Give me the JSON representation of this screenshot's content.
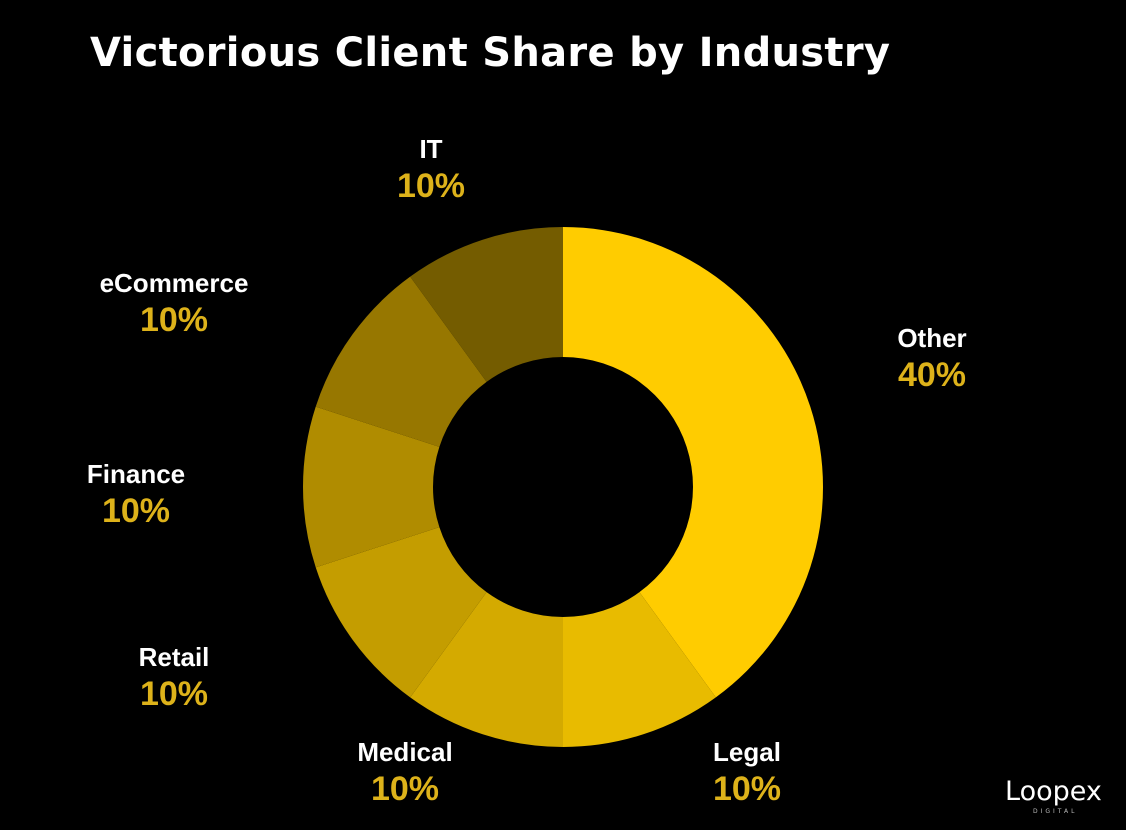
{
  "chart_data": {
    "type": "pie",
    "title": "Victorious Client Share by Industry",
    "slices": [
      {
        "label": "Other",
        "value": 40,
        "display": "40%",
        "color": "#FFCC00"
      },
      {
        "label": "Legal",
        "value": 10,
        "display": "10%",
        "color": "#E8BB00"
      },
      {
        "label": "Medical",
        "value": 10,
        "display": "10%",
        "color": "#D4AA00"
      },
      {
        "label": "Retail",
        "value": 10,
        "display": "10%",
        "color": "#C49D00"
      },
      {
        "label": "Finance",
        "value": 10,
        "display": "10%",
        "color": "#B08C00"
      },
      {
        "label": "eCommerce",
        "value": 10,
        "display": "10%",
        "color": "#977700"
      },
      {
        "label": "IT",
        "value": 10,
        "display": "10%",
        "color": "#745C00"
      }
    ],
    "start_angle": "12 o'clock",
    "direction": "clockwise",
    "donut": true,
    "legend": "none",
    "value_label_color": "#DDB21A"
  },
  "brand": {
    "logo_text": "Loopex",
    "logo_subtext": "DIGITAL"
  }
}
